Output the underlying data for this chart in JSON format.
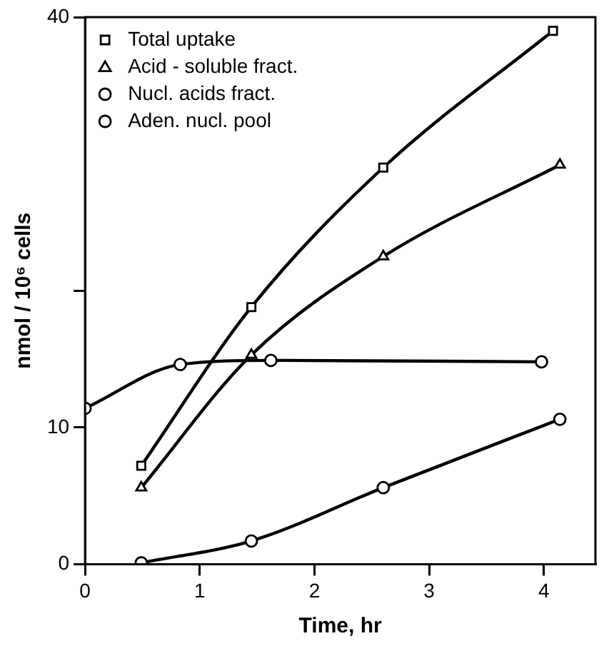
{
  "chart_data": {
    "type": "line",
    "xlabel": "Time, hr",
    "ylabel": "nmol / 10⁶ cells",
    "xlim": [
      0,
      4.45
    ],
    "xticks": [
      0,
      1,
      2,
      3,
      4
    ],
    "ylim": [
      0,
      40
    ],
    "yticks": [
      0,
      10,
      {
        "value": 20,
        "label": null
      },
      40
    ],
    "grid": false,
    "legend": "top left",
    "line_style": "solid",
    "series": [
      {
        "name": "Total uptake",
        "color": "#000000",
        "marker": "square",
        "x": [
          0.49,
          1.45,
          2.6,
          4.08
        ],
        "values": [
          7.2,
          18.8,
          29.0,
          39.0
        ]
      },
      {
        "name": "Acid - soluble fract.",
        "color": "#000000",
        "marker": "triangle",
        "x": [
          0.49,
          1.45,
          2.6,
          4.14
        ],
        "values": [
          5.6,
          15.3,
          22.5,
          29.2
        ]
      },
      {
        "name": "Nucl. acids fract.",
        "color": "#000000",
        "marker": "circle",
        "x": [
          0.49,
          1.45,
          2.6,
          4.14
        ],
        "values": [
          0.1,
          1.7,
          5.6,
          10.6
        ]
      },
      {
        "name": "Aden. nucl. pool",
        "color": "#000000",
        "marker": "circle",
        "x": [
          0,
          0.83,
          1.62,
          3.98
        ],
        "values": [
          11.4,
          14.6,
          14.9,
          14.8
        ]
      }
    ]
  }
}
